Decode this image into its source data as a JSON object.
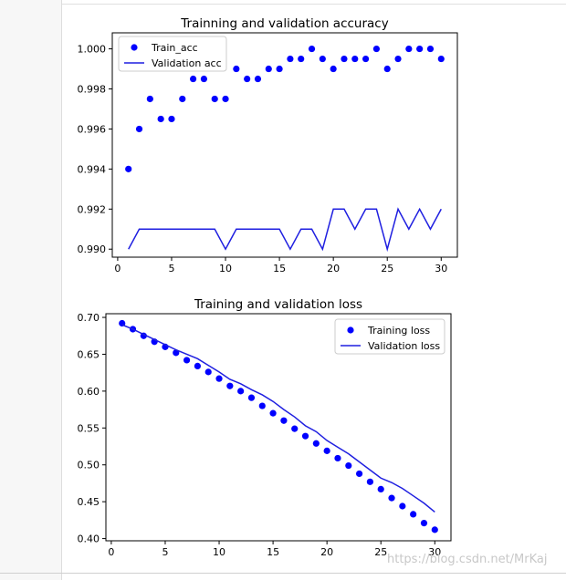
{
  "watermark": "https://blog.csdn.net/MrKaj",
  "colors": {
    "train": "#0000ff",
    "validation": "#1f1fe0"
  },
  "chart_data": [
    {
      "type": "line",
      "title": "Trainning and validation accuracy",
      "xlabel": "",
      "ylabel": "",
      "xlim": [
        -0.5,
        31.5
      ],
      "ylim": [
        0.9896,
        1.0008
      ],
      "xticks": [
        0,
        5,
        10,
        15,
        20,
        25,
        30
      ],
      "yticks": [
        0.99,
        0.992,
        0.994,
        0.996,
        0.998,
        1.0
      ],
      "yticklabels": [
        "0.990",
        "0.992",
        "0.994",
        "0.996",
        "0.998",
        "1.000"
      ],
      "legend_position": "top-left",
      "grid": false,
      "x": [
        1,
        2,
        3,
        4,
        5,
        6,
        7,
        8,
        9,
        10,
        11,
        12,
        13,
        14,
        15,
        16,
        17,
        18,
        19,
        20,
        21,
        22,
        23,
        24,
        25,
        26,
        27,
        28,
        29,
        30
      ],
      "series": [
        {
          "name": "Train_acc",
          "style": "points",
          "values": [
            0.994,
            0.996,
            0.9975,
            0.9965,
            0.9965,
            0.9975,
            0.9985,
            0.9985,
            0.9975,
            0.9975,
            0.999,
            0.9985,
            0.9985,
            0.999,
            0.999,
            0.9995,
            0.9995,
            1.0,
            0.9995,
            0.999,
            0.9995,
            0.9995,
            0.9995,
            1.0,
            0.999,
            0.9995,
            1.0,
            1.0,
            1.0,
            0.9995
          ]
        },
        {
          "name": "Validation acc",
          "style": "line",
          "values": [
            0.99,
            0.991,
            0.991,
            0.991,
            0.991,
            0.991,
            0.991,
            0.991,
            0.991,
            0.99,
            0.991,
            0.991,
            0.991,
            0.991,
            0.991,
            0.99,
            0.991,
            0.991,
            0.99,
            0.992,
            0.992,
            0.991,
            0.992,
            0.992,
            0.99,
            0.992,
            0.991,
            0.992,
            0.991,
            0.992
          ]
        }
      ]
    },
    {
      "type": "line",
      "title": "Training and validation loss",
      "xlabel": "",
      "ylabel": "",
      "xlim": [
        -0.5,
        31.5
      ],
      "ylim": [
        0.397,
        0.705
      ],
      "xticks": [
        0,
        5,
        10,
        15,
        20,
        25,
        30
      ],
      "yticks": [
        0.4,
        0.45,
        0.5,
        0.55,
        0.6,
        0.65,
        0.7
      ],
      "yticklabels": [
        "0.40",
        "0.45",
        "0.50",
        "0.55",
        "0.60",
        "0.65",
        "0.70"
      ],
      "legend_position": "top-right",
      "grid": false,
      "x": [
        1,
        2,
        3,
        4,
        5,
        6,
        7,
        8,
        9,
        10,
        11,
        12,
        13,
        14,
        15,
        16,
        17,
        18,
        19,
        20,
        21,
        22,
        23,
        24,
        25,
        26,
        27,
        28,
        29,
        30
      ],
      "series": [
        {
          "name": "Training loss",
          "style": "points",
          "values": [
            0.692,
            0.684,
            0.675,
            0.667,
            0.66,
            0.652,
            0.642,
            0.634,
            0.626,
            0.617,
            0.607,
            0.6,
            0.591,
            0.58,
            0.57,
            0.56,
            0.549,
            0.539,
            0.529,
            0.519,
            0.509,
            0.499,
            0.488,
            0.477,
            0.467,
            0.455,
            0.444,
            0.433,
            0.421,
            0.412
          ]
        },
        {
          "name": "Validation loss",
          "style": "line",
          "values": [
            0.69,
            0.684,
            0.677,
            0.67,
            0.663,
            0.656,
            0.65,
            0.644,
            0.635,
            0.626,
            0.616,
            0.61,
            0.602,
            0.595,
            0.586,
            0.575,
            0.565,
            0.553,
            0.545,
            0.533,
            0.524,
            0.515,
            0.504,
            0.493,
            0.482,
            0.476,
            0.468,
            0.458,
            0.448,
            0.436
          ]
        }
      ]
    }
  ]
}
